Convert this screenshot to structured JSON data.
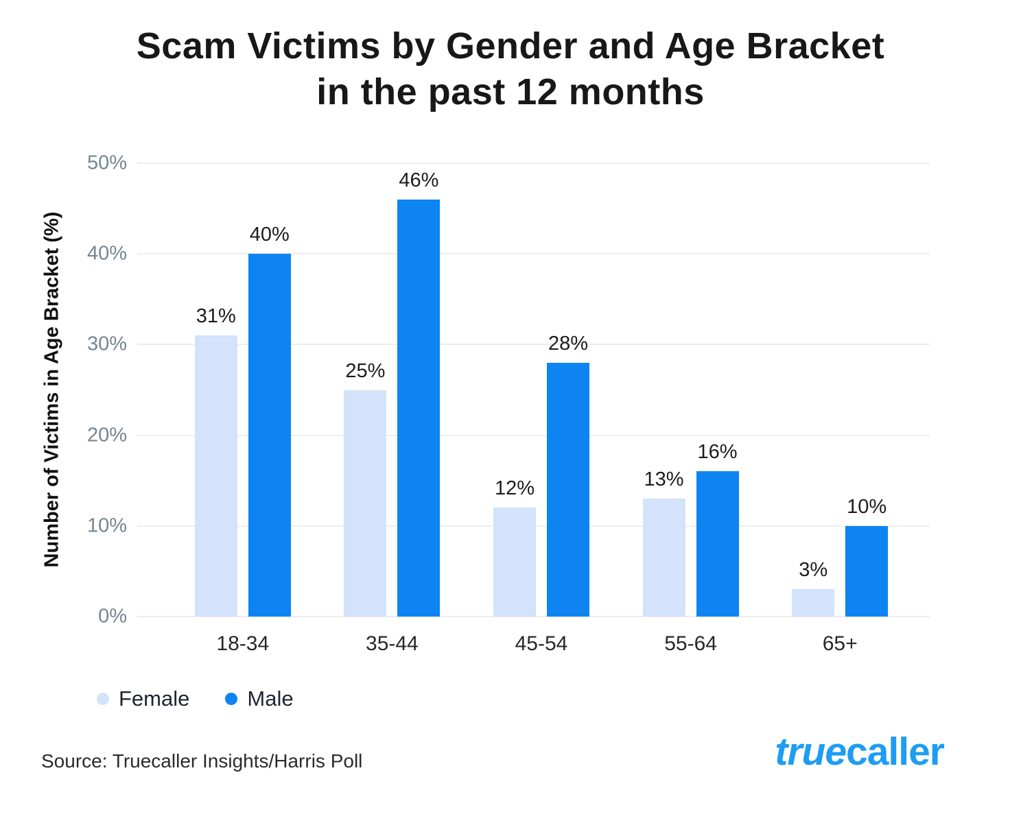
{
  "title": {
    "line1": "Scam Victims by Gender and Age Bracket",
    "line2": "in the past 12 months"
  },
  "chart_data": {
    "type": "bar",
    "categories": [
      "18-34",
      "35-44",
      "45-54",
      "55-64",
      "65+"
    ],
    "series": [
      {
        "name": "Female",
        "color": "#d2e3fb",
        "values": [
          31,
          25,
          12,
          13,
          3
        ]
      },
      {
        "name": "Male",
        "color": "#0d84f2",
        "values": [
          40,
          46,
          28,
          16,
          10
        ]
      }
    ],
    "value_suffix": "%",
    "title": "Scam Victims by Gender and Age Bracket in the past 12 months",
    "xlabel": "",
    "ylabel": "Number of Victims in Age Bracket (%)",
    "yticks": [
      "50%",
      "40%",
      "30%",
      "20%",
      "10%",
      "0%"
    ],
    "ylim": [
      0,
      50
    ],
    "grid": true,
    "legend_position": "bottom-left"
  },
  "footer": {
    "source": "Source: Truecaller Insights/Harris Poll",
    "logo": {
      "part1": "true",
      "part2": "caller",
      "color": "#1e9df2"
    }
  }
}
